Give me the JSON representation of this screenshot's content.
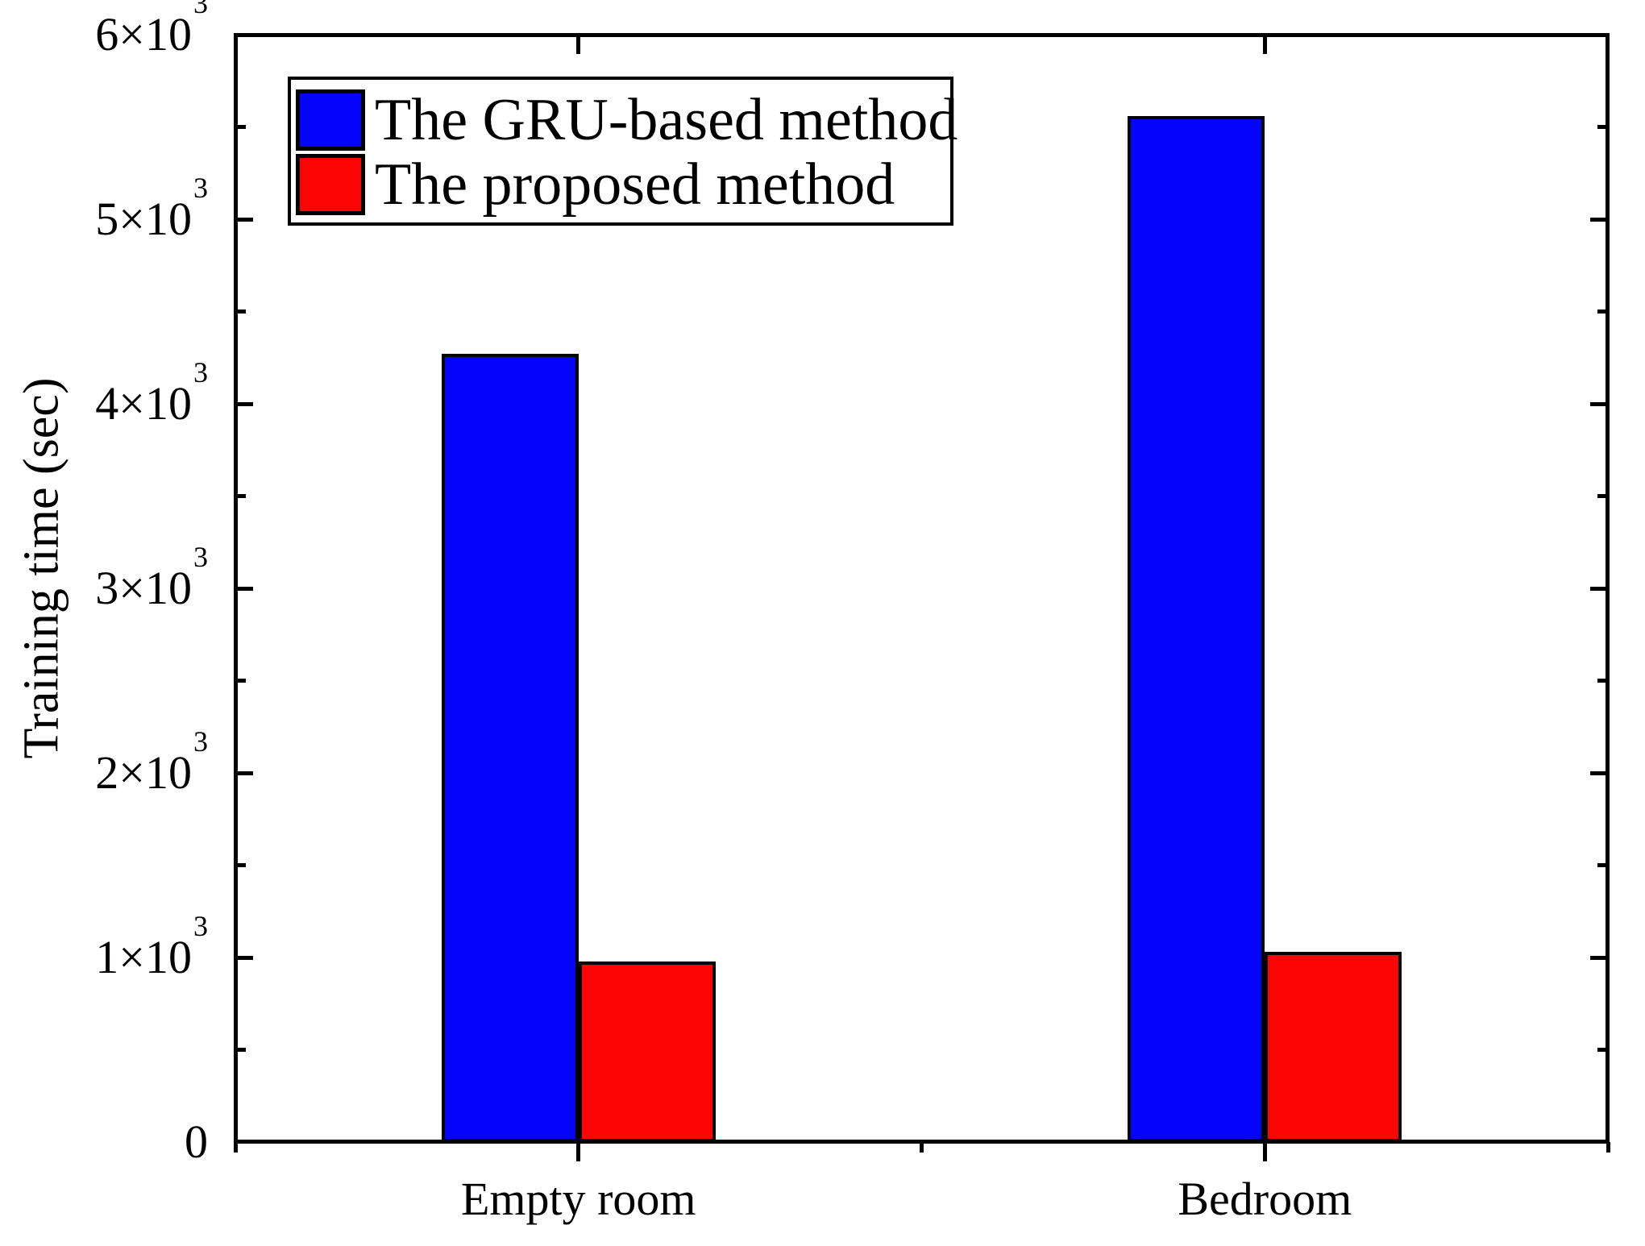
{
  "figure": {
    "background": "#ffffff",
    "frame_color": "#000000"
  },
  "chart_data": {
    "type": "bar",
    "title": "",
    "categories": [
      "Empty room",
      "Bedroom"
    ],
    "series": [
      {
        "name": "The GRU-based method",
        "color": "#0404FA",
        "values": [
          4270,
          5560
        ]
      },
      {
        "name": "The proposed method",
        "color": "#FA0404",
        "values": [
          980,
          1030
        ]
      }
    ],
    "xlabel": "",
    "ylabel": "Training time (sec)",
    "ylim": [
      0,
      6000
    ],
    "y_major_step": 1000,
    "y_minor_step": 500,
    "y_tick_labels": [
      "0",
      "1×10³",
      "2×10³",
      "3×10³",
      "4×10³",
      "5×10³",
      "6×10³"
    ],
    "grid": false,
    "legend_position": "top-left",
    "bar_outline_color": "#000000"
  }
}
